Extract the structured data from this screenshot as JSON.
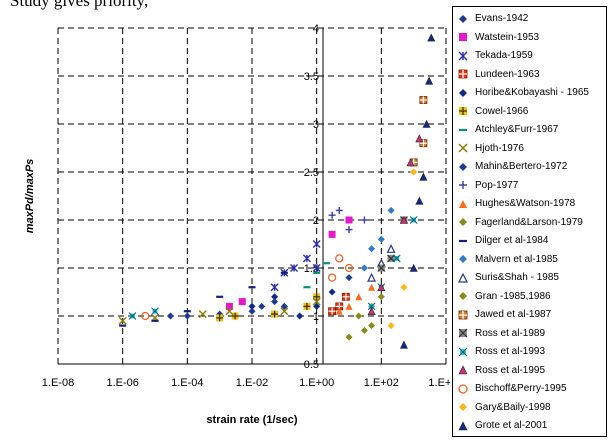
{
  "caption_text": "Study gives priority,",
  "chart_data": {
    "type": "scatter",
    "title": "",
    "xlabel": "strain rate (1/sec)",
    "ylabel": "maxPd/maxPs",
    "x_scale": "log",
    "x_ticks": [
      "1.E-08",
      "1.E-06",
      "1.E-04",
      "1.E-02",
      "1.E+00",
      "1.E+02",
      "1.E+04"
    ],
    "y_ticks": [
      "0.5",
      "1",
      "1.5",
      "2",
      "2.5",
      "3",
      "3.5",
      "4"
    ],
    "xlim": [
      1e-08,
      10000.0
    ],
    "ylim": [
      0.5,
      4
    ],
    "grid": "dashed",
    "legend_position": "right",
    "series": [
      {
        "name": "Evans-1942",
        "marker": "diamond",
        "color": "#1f3a93",
        "points": [
          [
            3e-05,
            1.0
          ],
          [
            0.0001,
            1.0
          ],
          [
            0.001,
            1.02
          ],
          [
            0.01,
            1.05
          ],
          [
            0.1,
            1.1
          ],
          [
            1,
            1.2
          ],
          [
            10,
            1.4
          ]
        ]
      },
      {
        "name": "Watstein-1953",
        "marker": "square",
        "color": "#e619c8",
        "points": [
          [
            0.002,
            1.1
          ],
          [
            0.005,
            1.15
          ],
          [
            3,
            1.85
          ],
          [
            10,
            2.0
          ]
        ]
      },
      {
        "name": "Tekada-1959",
        "marker": "xstar",
        "color": "#2a2fa8",
        "points": [
          [
            0.05,
            1.3
          ],
          [
            0.1,
            1.45
          ],
          [
            0.2,
            1.5
          ],
          [
            0.5,
            1.6
          ],
          [
            1,
            1.75
          ],
          [
            1,
            1.5
          ]
        ]
      },
      {
        "name": "Lundeen-1963",
        "marker": "squarecross",
        "color": "#e63312",
        "points": [
          [
            3,
            1.05
          ],
          [
            5,
            1.1
          ],
          [
            8,
            1.2
          ]
        ]
      },
      {
        "name": "Horibe&Kobayashi - 1965",
        "marker": "diamond",
        "color": "#0c2a8a",
        "points": [
          [
            0.01,
            1.1
          ],
          [
            0.05,
            1.2
          ],
          [
            0.3,
            1.0
          ],
          [
            1,
            1.1
          ],
          [
            3,
            1.25
          ]
        ]
      },
      {
        "name": "Cowel-1966",
        "marker": "plusbox",
        "color": "#e8c21a",
        "points": [
          [
            0.001,
            0.98
          ],
          [
            0.003,
            1.0
          ],
          [
            0.05,
            1.02
          ],
          [
            0.5,
            1.1
          ],
          [
            1,
            1.2
          ]
        ]
      },
      {
        "name": "Atchley&Furr-1967",
        "marker": "dash",
        "color": "#0c8f7a",
        "points": [
          [
            0.5,
            1.3
          ],
          [
            1,
            1.45
          ],
          [
            2,
            1.55
          ]
        ]
      },
      {
        "name": "Hjoth-1976",
        "marker": "x",
        "color": "#8a7a00",
        "points": [
          [
            1e-06,
            0.95
          ],
          [
            1e-05,
            0.98
          ],
          [
            0.0003,
            1.02
          ],
          [
            0.002,
            1.05
          ],
          [
            0.1,
            1.05
          ],
          [
            1,
            1.15
          ]
        ]
      },
      {
        "name": "Mahin&Bertero-1972",
        "marker": "diamond",
        "color": "#1f3a93",
        "points": [
          [
            0.02,
            1.1
          ],
          [
            0.05,
            1.15
          ],
          [
            0.1,
            1.1
          ]
        ]
      },
      {
        "name": "Pop-1977",
        "marker": "plus",
        "color": "#3a3aa8",
        "points": [
          [
            3,
            2.05
          ],
          [
            5,
            2.1
          ],
          [
            10,
            1.9
          ],
          [
            30,
            2.0
          ]
        ]
      },
      {
        "name": "Hughes&Watson-1978",
        "marker": "triangle",
        "color": "#ff6a1a",
        "points": [
          [
            5,
            1.05
          ],
          [
            10,
            1.1
          ],
          [
            20,
            1.2
          ],
          [
            50,
            1.3
          ]
        ]
      },
      {
        "name": "Fagerland&Larson-1979",
        "marker": "diamond",
        "color": "#8a8a1a",
        "points": [
          [
            10,
            0.78
          ],
          [
            30,
            0.85
          ],
          [
            50,
            0.9
          ]
        ]
      },
      {
        "name": "Dilger et al-1984",
        "marker": "dash",
        "color": "#141e78",
        "points": [
          [
            1e-06,
            0.9
          ],
          [
            1e-05,
            0.95
          ],
          [
            0.0001,
            1.05
          ],
          [
            0.001,
            1.2
          ],
          [
            0.01,
            1.3
          ],
          [
            0.1,
            1.45
          ]
        ]
      },
      {
        "name": "Malvern et al-1985",
        "marker": "diamond",
        "color": "#2f7ac8",
        "points": [
          [
            30,
            1.5
          ],
          [
            50,
            1.7
          ],
          [
            100,
            1.8
          ],
          [
            200,
            2.1
          ]
        ]
      },
      {
        "name": "Suris&Shah - 1985",
        "marker": "triangleopen",
        "color": "#2a3a8a",
        "points": [
          [
            50,
            1.4
          ],
          [
            100,
            1.55
          ],
          [
            200,
            1.7
          ]
        ]
      },
      {
        "name": "Gran -1985,1986",
        "marker": "diamond",
        "color": "#8a8a1a",
        "points": [
          [
            20,
            1.0
          ],
          [
            50,
            1.1
          ],
          [
            100,
            1.2
          ]
        ]
      },
      {
        "name": "Jawed et al-1987",
        "marker": "squarecross",
        "color": "#c9842a",
        "points": [
          [
            1000,
            2.6
          ],
          [
            2000,
            2.8
          ],
          [
            2000,
            3.25
          ]
        ]
      },
      {
        "name": "Ross et al-1989",
        "marker": "squarex",
        "color": "#8a8a8a",
        "points": [
          [
            100,
            1.5
          ],
          [
            200,
            1.6
          ],
          [
            500,
            2.0
          ]
        ]
      },
      {
        "name": "Ross et al-1993",
        "marker": "asterisk",
        "color": "#19c8d8",
        "points": [
          [
            2e-06,
            1.0
          ],
          [
            1e-05,
            1.05
          ],
          [
            50,
            1.1
          ],
          [
            100,
            1.3
          ],
          [
            300,
            1.6
          ],
          [
            1000,
            2.0
          ]
        ]
      },
      {
        "name": "Ross et al-1995",
        "marker": "trianglefill",
        "color": "#c83278",
        "points": [
          [
            50,
            1.05
          ],
          [
            100,
            1.3
          ],
          [
            500,
            2.0
          ],
          [
            800,
            2.6
          ],
          [
            1500,
            2.85
          ]
        ]
      },
      {
        "name": "Bischoff&Perry-1995",
        "marker": "circleopen",
        "color": "#e8642a",
        "points": [
          [
            5e-06,
            1.0
          ],
          [
            3,
            1.4
          ],
          [
            5,
            1.6
          ],
          [
            10,
            1.5
          ]
        ]
      },
      {
        "name": "Gary&Baily-1998",
        "marker": "diamond",
        "color": "#ffb41a",
        "points": [
          [
            200,
            0.9
          ],
          [
            500,
            1.3
          ],
          [
            1000,
            2.5
          ]
        ]
      },
      {
        "name": "Grote et al-2001",
        "marker": "trianglefill",
        "color": "#0c2a8a",
        "points": [
          [
            500,
            0.7
          ],
          [
            1000,
            1.5
          ],
          [
            1500,
            2.2
          ],
          [
            2000,
            2.45
          ],
          [
            2500,
            3.0
          ],
          [
            3000,
            3.45
          ],
          [
            3500,
            3.9
          ]
        ]
      }
    ]
  }
}
